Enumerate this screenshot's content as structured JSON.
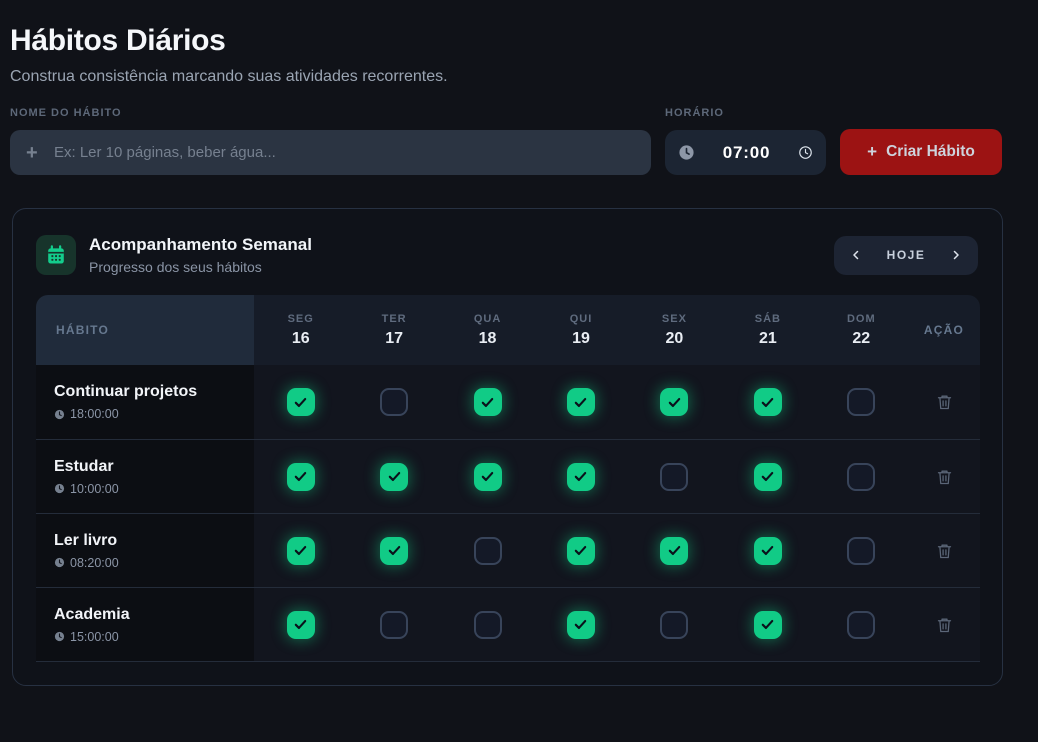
{
  "page": {
    "title": "Hábitos Diários",
    "subtitle": "Construa consistência marcando suas atividades recorrentes."
  },
  "form": {
    "name_label": "NOME DO HÁBITO",
    "name_placeholder": "Ex: Ler 10 páginas, beber água...",
    "time_label": "HORÁRIO",
    "time_value": "07:00",
    "create_button_label": "Criar Hábito"
  },
  "icons": {
    "plus": "+"
  },
  "tracker": {
    "title": "Acompanhamento Semanal",
    "subtitle": "Progresso dos seus hábitos",
    "today_label": "HOJE"
  },
  "table": {
    "habit_header": "HÁBITO",
    "action_header": "AÇÃO",
    "days": [
      {
        "abbr": "SEG",
        "date": "16"
      },
      {
        "abbr": "TER",
        "date": "17"
      },
      {
        "abbr": "QUA",
        "date": "18"
      },
      {
        "abbr": "QUI",
        "date": "19"
      },
      {
        "abbr": "SEX",
        "date": "20"
      },
      {
        "abbr": "SÁB",
        "date": "21"
      },
      {
        "abbr": "DOM",
        "date": "22"
      }
    ],
    "rows": [
      {
        "name": "Continuar projetos",
        "time": "18:00:00",
        "checks": [
          true,
          false,
          true,
          true,
          true,
          true,
          false
        ]
      },
      {
        "name": "Estudar",
        "time": "10:00:00",
        "checks": [
          true,
          true,
          true,
          true,
          false,
          true,
          false
        ]
      },
      {
        "name": "Ler livro",
        "time": "08:20:00",
        "checks": [
          true,
          true,
          false,
          true,
          true,
          true,
          false
        ]
      },
      {
        "name": "Academia",
        "time": "15:00:00",
        "checks": [
          true,
          false,
          false,
          true,
          false,
          true,
          false
        ]
      }
    ]
  },
  "colors": {
    "accent-green": "#11cb86",
    "accent-red": "#9c1313",
    "page-bg": "#101218",
    "card-bg": "#0f1219"
  }
}
